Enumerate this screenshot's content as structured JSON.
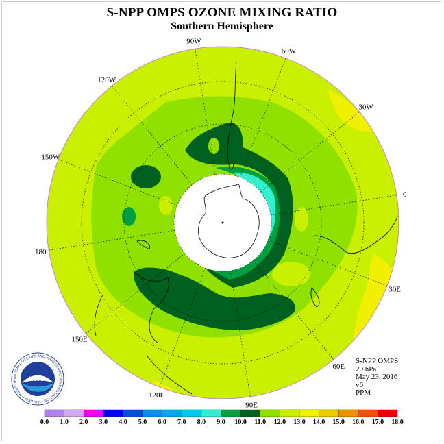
{
  "header": {
    "title": "S-NPP OMPS OZONE MIXING RATIO",
    "subtitle": "Southern Hemisphere"
  },
  "map": {
    "projection": "south-polar-stereographic",
    "longitude_labels": [
      "90W",
      "60W",
      "30W",
      "0",
      "30E",
      "60E",
      "90E",
      "120E",
      "150E",
      "180",
      "150W",
      "120W"
    ],
    "polar_cap_fill": "#ffffff"
  },
  "info": {
    "instrument": "S-NPP OMPS",
    "level": "20 hPa",
    "date": "May 23, 2016",
    "version": "v6",
    "units": "PPM"
  },
  "colorbar": {
    "ticks": [
      "0.0",
      "1.0",
      "2.0",
      "3.0",
      "4.0",
      "5.0",
      "6.0",
      "7.0",
      "8.0",
      "9.0",
      "10.0",
      "11.0",
      "12.0",
      "13.0",
      "14.0",
      "15.0",
      "16.0",
      "17.0",
      "18.0"
    ],
    "colors": [
      "#b480f0",
      "#d4a8f0",
      "#f000f0",
      "#0000f0",
      "#0050e0",
      "#0090f0",
      "#00a8f0",
      "#00c8f0",
      "#30f0d0",
      "#00a040",
      "#006020",
      "#90e000",
      "#c8f000",
      "#f0f000",
      "#f0c800",
      "#f09000",
      "#f05000",
      "#f00000",
      "#906040"
    ]
  },
  "logo": {
    "name": "noaa-logo",
    "text": "NOAA",
    "ring_text": "NATIONAL OCEANIC AND ATMOSPHERIC ADMINISTRATION · U.S. DEPARTMENT OF COMMERCE"
  }
}
